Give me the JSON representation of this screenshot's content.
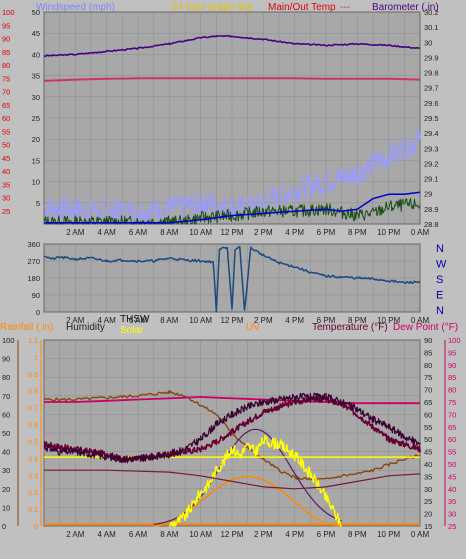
{
  "colors": {
    "background": "#c0c0c0",
    "plot_bg": "#a8a8a8",
    "grid": "#8c8c8c",
    "wind": "#9999ff",
    "gust": "#1a4d1a",
    "wind_avg": "#0000cc",
    "barometer": "#4b0082",
    "temp_main": "#cc3366",
    "wind_dir": "#1a4a80",
    "rain": "#ff8800",
    "humidity": "#8b4513",
    "thsw": "#111111",
    "solar": "#ffff00",
    "uv": "#ff8800",
    "temperature": "#660033",
    "dew_point": "#cc0066",
    "dark_red": "#8b0000"
  },
  "chart_data": [
    {
      "type": "line",
      "title": "24 hour graph day",
      "legend": {
        "windspeed": "Windspeed (mph)",
        "title": "24 hour graph day",
        "main_temp": "Main/Out Temp",
        "barometer": "Barometer (.in)"
      },
      "x_ticks": [
        "2 AM",
        "4 AM",
        "6 AM",
        "8 AM",
        "10 AM",
        "12 PM",
        "2 PM",
        "4 PM",
        "6 PM",
        "8 PM",
        "10 PM",
        "0 AM"
      ],
      "x_range": [
        0,
        24
      ],
      "y_left": {
        "label": "Windspeed (mph)",
        "range": [
          0,
          50
        ],
        "ticks": [
          5,
          10,
          15,
          20,
          25,
          30,
          35,
          40,
          45,
          50
        ]
      },
      "y_left_outer": {
        "label": "Main/Out Temp",
        "range": [
          20,
          100
        ],
        "ticks": [
          25,
          30,
          35,
          40,
          45,
          50,
          55,
          60,
          65,
          70,
          75,
          80,
          85,
          90,
          95,
          100
        ]
      },
      "y_right": {
        "label": "Barometer (.in)",
        "range": [
          28.8,
          30.2
        ],
        "ticks": [
          "28.8",
          "28.9",
          "29",
          "29.1",
          "29.2",
          "29.3",
          "29.4",
          "29.5",
          "29.6",
          "29.7",
          "29.8",
          "29.9",
          "30",
          "30.1",
          "30.2"
        ]
      },
      "series": [
        {
          "name": "Barometer (.in)",
          "axis": "right",
          "x": [
            0,
            2,
            4,
            6,
            8,
            10,
            11,
            12,
            13,
            14,
            16,
            18,
            20,
            22,
            24
          ],
          "y": [
            29.91,
            29.92,
            29.94,
            29.96,
            29.99,
            30.03,
            30.04,
            30.04,
            30.03,
            30.02,
            29.99,
            29.98,
            29.99,
            29.98,
            29.96
          ]
        },
        {
          "name": "Main/Out Temp",
          "axis": "left_outer",
          "x": [
            0,
            2,
            4,
            6,
            8,
            10,
            12,
            14,
            16,
            18,
            20,
            22,
            24
          ],
          "y": [
            74,
            74.5,
            74.8,
            75,
            75,
            75,
            75,
            75,
            75,
            74.8,
            74.8,
            74.8,
            74.5
          ]
        },
        {
          "name": "Windspeed (mph)",
          "axis": "left",
          "x": [
            0,
            2,
            4,
            6,
            8,
            10,
            12,
            13,
            14,
            16,
            18,
            20,
            21,
            22,
            23,
            24
          ],
          "y": [
            4,
            3.5,
            3,
            3,
            3.5,
            5,
            4,
            4,
            5,
            8,
            10,
            12,
            14,
            16,
            18,
            20
          ]
        },
        {
          "name": "gust",
          "axis": "left",
          "x": [
            0,
            4,
            8,
            9,
            10,
            12,
            14,
            16,
            18,
            20,
            21,
            22,
            23,
            24
          ],
          "y": [
            0.5,
            0.5,
            0.5,
            0.5,
            1.5,
            2,
            3,
            3,
            3.5,
            2,
            2.5,
            4,
            4.5,
            4.5
          ]
        },
        {
          "name": "avg",
          "axis": "left",
          "x": [
            0,
            4,
            8,
            10,
            12,
            14,
            16,
            18,
            19,
            20,
            21,
            22,
            23,
            24
          ],
          "y": [
            0.3,
            0.3,
            0.3,
            1,
            2,
            2.5,
            3,
            3.5,
            3,
            3.5,
            6,
            7,
            7,
            7.5
          ]
        }
      ]
    },
    {
      "type": "line",
      "legend": {
        "right": [
          "N",
          "W",
          "S",
          "E",
          "N"
        ]
      },
      "x_ticks": [
        "2 AM",
        "4 AM",
        "6 AM",
        "8 AM",
        "10 AM",
        "12 PM",
        "2 PM",
        "4 PM",
        "6 PM",
        "8 PM",
        "10 PM",
        "0 AM"
      ],
      "x_range": [
        0,
        24
      ],
      "y_left": {
        "range": [
          0,
          360
        ],
        "ticks": [
          "0",
          "90",
          "180",
          "270",
          "360"
        ]
      },
      "series": [
        {
          "name": "wind direction",
          "x": [
            0,
            0.5,
            1,
            2,
            3,
            4,
            5,
            6,
            7,
            8,
            9,
            10,
            10.8,
            11,
            11.2,
            11.4,
            11.7,
            12,
            12.2,
            12.5,
            12.8,
            13.2,
            14,
            15,
            16,
            17,
            18,
            19,
            20,
            21,
            22,
            23,
            24
          ],
          "y": [
            300,
            280,
            290,
            280,
            285,
            270,
            275,
            270,
            270,
            285,
            275,
            270,
            265,
            5,
            330,
            345,
            340,
            10,
            330,
            345,
            5,
            340,
            300,
            260,
            240,
            210,
            190,
            185,
            180,
            175,
            165,
            155,
            160
          ]
        }
      ]
    },
    {
      "type": "line",
      "legend": {
        "rainfall": "Rainfall (.in)",
        "humidity": "Humidity",
        "thsw": "THSW",
        "solar": "Solar",
        "uv": "UV",
        "temperature": "Temperature (°F)",
        "dew_point": "Dew Point (°F)"
      },
      "x_ticks": [
        "2 AM",
        "4 AM",
        "6 AM",
        "8 AM",
        "10 AM",
        "12 PM",
        "2 PM",
        "4 PM",
        "6 PM",
        "8 PM",
        "10 PM",
        "0 AM"
      ],
      "x_range": [
        0,
        24
      ],
      "y_left": {
        "label": "Humidity",
        "range": [
          0,
          100
        ],
        "ticks": [
          "0",
          "10",
          "20",
          "30",
          "40",
          "50",
          "60",
          "70",
          "80",
          "90",
          "100"
        ]
      },
      "y_left_outer": {
        "label": "Rainfall (.in)",
        "range": [
          0,
          1.1
        ],
        "ticks": [
          "0",
          "0.1",
          "0.2",
          "0.3",
          "0.4",
          "0.5",
          "0.6",
          "0.7",
          "0.8",
          "0.9",
          "1",
          "1.1"
        ]
      },
      "y_right": {
        "label": "Temperature (°F)",
        "range": [
          15,
          90
        ],
        "ticks": [
          "15",
          "20",
          "25",
          "30",
          "35",
          "40",
          "45",
          "50",
          "55",
          "60",
          "65",
          "70",
          "75",
          "80",
          "85",
          "90"
        ]
      },
      "y_right_outer": {
        "label": "Dew Point (°F)",
        "range": [
          25,
          100
        ],
        "ticks": [
          "25",
          "30",
          "35",
          "40",
          "45",
          "50",
          "55",
          "60",
          "65",
          "70",
          "75",
          "80",
          "85",
          "90",
          "95",
          "100"
        ]
      },
      "series": [
        {
          "name": "Humidity",
          "x": [
            0,
            2,
            4,
            6,
            8,
            9,
            10,
            11,
            12,
            13,
            14,
            15,
            16,
            17,
            18,
            19,
            20,
            21,
            22,
            23,
            24
          ],
          "y": [
            68,
            68,
            69,
            70,
            72,
            70,
            65,
            60,
            50,
            42,
            36,
            30,
            26,
            25,
            25,
            27,
            28,
            30,
            33,
            36,
            38
          ]
        },
        {
          "name": "Temperature (°F)",
          "x": [
            0,
            1,
            2,
            3,
            4,
            5,
            6,
            7,
            8,
            9,
            10,
            11,
            12,
            13,
            14,
            15,
            16,
            17,
            18,
            19,
            20,
            21,
            22,
            23,
            24
          ],
          "y": [
            48,
            47,
            46,
            45,
            44,
            42,
            42,
            43,
            44,
            45,
            46,
            49,
            53,
            57,
            61,
            63,
            65,
            66,
            66,
            64,
            60,
            55,
            50,
            48,
            46
          ]
        },
        {
          "name": "Dew Point (°F)",
          "x": [
            0,
            2,
            4,
            6,
            8,
            10,
            12,
            14,
            16,
            18,
            20,
            22,
            24
          ],
          "y": [
            75,
            75,
            75.5,
            76,
            76.5,
            77,
            76.5,
            76,
            75.5,
            75,
            74.5,
            74.5,
            74.5
          ]
        },
        {
          "name": "THSW",
          "x": [
            0,
            1,
            2,
            3,
            4,
            5,
            6,
            7,
            8,
            9,
            10,
            11,
            12,
            13,
            14,
            15,
            16,
            17,
            18,
            19,
            20,
            21,
            22,
            23,
            24
          ],
          "y": [
            47,
            45,
            45,
            44,
            43,
            42,
            42,
            43,
            44,
            46,
            50,
            56,
            60,
            63,
            65,
            66,
            67,
            67,
            67,
            65,
            62,
            58,
            55,
            51,
            48
          ]
        },
        {
          "name": "Solar",
          "x": [
            8,
            9,
            10,
            10.5,
            11,
            11.5,
            12,
            12.5,
            13,
            13.5,
            14,
            15,
            16,
            17,
            17.5,
            18,
            18.5,
            19
          ],
          "y": [
            0,
            5,
            18,
            22,
            30,
            35,
            42,
            38,
            43,
            40,
            46,
            44,
            38,
            28,
            22,
            15,
            8,
            0
          ]
        },
        {
          "name": "UV",
          "x": [
            7,
            8,
            9,
            10,
            11,
            12,
            13,
            14,
            15,
            16,
            17,
            18,
            19
          ],
          "y": [
            0,
            1,
            6,
            13,
            20,
            25,
            27,
            25,
            20,
            13,
            6,
            1,
            0
          ]
        },
        {
          "name": "Rainfall (.in)",
          "x": [
            0,
            24
          ],
          "y": [
            0.01,
            0.01
          ]
        }
      ]
    }
  ]
}
